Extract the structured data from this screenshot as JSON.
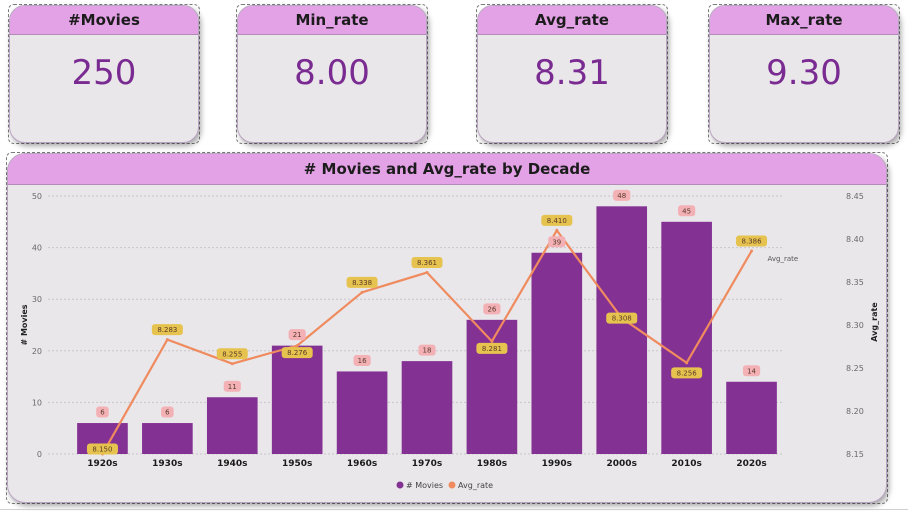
{
  "kpis": [
    {
      "label": "#Movies",
      "value": "250"
    },
    {
      "label": "Min_rate",
      "value": "8.00"
    },
    {
      "label": "Avg_rate",
      "value": "8.31"
    },
    {
      "label": "Max_rate",
      "value": "9.30"
    }
  ],
  "colors": {
    "bar": "#843194",
    "line": "#ef8b5e",
    "header": "#e3a1e6",
    "card_bg": "#e9e7ea",
    "kpi_value": "#7a2b91",
    "bar_label_bg": "#f3b1b6",
    "line_label_bg": "#e6c34e"
  },
  "chart_data": {
    "type": "bar",
    "title": "# Movies and Avg_rate by Decade",
    "categories": [
      "1920s",
      "1930s",
      "1940s",
      "1950s",
      "1960s",
      "1970s",
      "1980s",
      "1990s",
      "2000s",
      "2010s",
      "2020s"
    ],
    "series": [
      {
        "name": "# Movies",
        "type": "bar",
        "axis": "left",
        "values": [
          6,
          6,
          11,
          21,
          16,
          18,
          26,
          39,
          48,
          45,
          14
        ]
      },
      {
        "name": "Avg_rate",
        "type": "line",
        "axis": "right",
        "values": [
          8.15,
          8.283,
          8.255,
          8.276,
          8.338,
          8.361,
          8.281,
          8.41,
          8.308,
          8.256,
          8.386
        ]
      }
    ],
    "ylabel": "# Movies",
    "ylabel_right": "Avg_rate",
    "ylim": [
      0,
      50
    ],
    "yticks": [
      0,
      10,
      20,
      30,
      40,
      50
    ],
    "ylim_right": [
      8.15,
      8.45
    ],
    "yticks_right": [
      "8.15",
      "8.20",
      "8.25",
      "8.30",
      "8.35",
      "8.40",
      "8.45"
    ],
    "bar_labels": [
      "6",
      "6",
      "11",
      "21",
      "16",
      "18",
      "26",
      "39",
      "48",
      "45",
      "14"
    ],
    "line_labels": [
      "8.150",
      "8.283",
      "8.255",
      "8.276",
      "8.338",
      "8.361",
      "8.281",
      "8.410",
      "8.308",
      "8.256",
      "8.386"
    ],
    "line_end_label": "Avg_rate",
    "legend": {
      "position": "bottom",
      "entries": [
        "# Movies",
        "Avg_rate"
      ]
    },
    "grid": true
  }
}
